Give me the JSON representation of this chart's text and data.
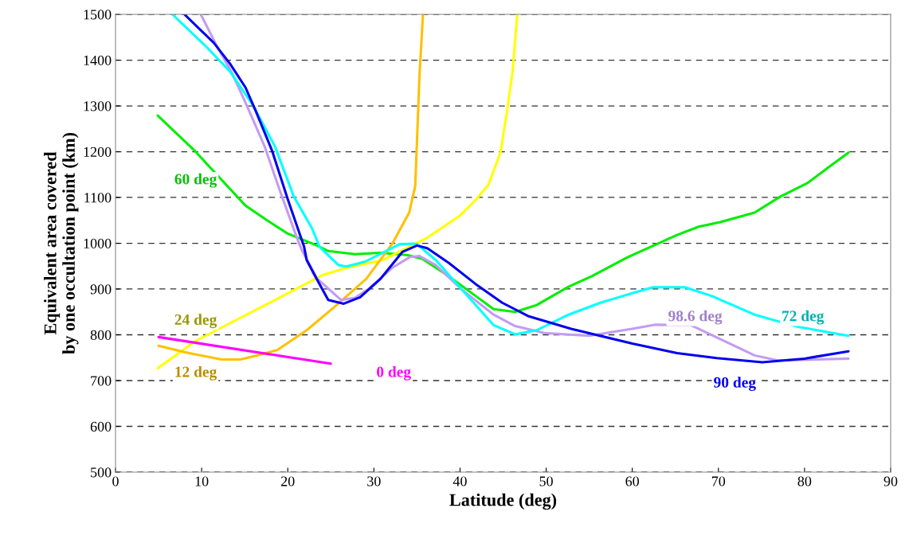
{
  "chart_data": {
    "type": "line",
    "xlabel": "Latitude (deg)",
    "ylabel": "Equivalent area covered\nby one occultation point (km)",
    "xlim": [
      0,
      90
    ],
    "xticks": [
      0,
      10,
      20,
      30,
      40,
      50,
      60,
      70,
      80,
      90
    ],
    "ylim": [
      500,
      1500
    ],
    "yticks": [
      500,
      600,
      700,
      800,
      900,
      1000,
      1100,
      1200,
      1300,
      1400,
      1500
    ],
    "grid": "y",
    "legend": false,
    "marker": "none",
    "line_style": "solid",
    "series": [
      {
        "name": "60 deg",
        "color": "#00ee00",
        "x": [
          4.9,
          9.25,
          15.1,
          17.6,
          20.0,
          23.4,
          24.7,
          27.8,
          30.8,
          33.9,
          35.6,
          38.7,
          41.8,
          43.9,
          46.4,
          48.9,
          52.6,
          55.3,
          59.4,
          65.2,
          67.7,
          70.2,
          74.2,
          77.2,
          80.3,
          82.8,
          85.1
        ],
        "values": [
          1279,
          1201,
          1082,
          1050,
          1021,
          995,
          983,
          976,
          979,
          974,
          966,
          928,
          885,
          856,
          850,
          865,
          905,
          928,
          969,
          1018,
          1036,
          1046,
          1067,
          1102,
          1131,
          1166,
          1198
        ]
      },
      {
        "name": "24 deg",
        "color": "#ffff00",
        "x": [
          4.9,
          9.25,
          18.5,
          24.1,
          26.8,
          31.0,
          36.2,
          39.9,
          41.8,
          43.3,
          44.7,
          45.5,
          46.1,
          46.65
        ],
        "values": [
          727,
          786,
          876,
          931,
          946,
          963,
          1012,
          1059,
          1094,
          1128,
          1198,
          1294,
          1375,
          1500
        ]
      },
      {
        "name": "12 deg",
        "color": "#ffc000",
        "x": [
          5.0,
          8.0,
          12.3,
          14.5,
          16.7,
          18.8,
          22.2,
          25.3,
          29.1,
          32.1,
          34.1,
          34.8,
          35.3,
          35.7
        ],
        "values": [
          776,
          762,
          746,
          746,
          756,
          767,
          810,
          859,
          922,
          998,
          1067,
          1125,
          1369,
          1500
        ]
      },
      {
        "name": "0 deg",
        "color": "#ff00ff",
        "x": [
          5,
          25
        ],
        "values": [
          795,
          737
        ]
      },
      {
        "name": "98.6 deg",
        "color": "#c39bf3",
        "x": [
          9.9,
          11.7,
          13.6,
          15.4,
          17.3,
          19.1,
          21.0,
          21.6,
          23.4,
          26.2,
          27.8,
          29.3,
          32.1,
          34.2,
          35.3,
          37.2,
          40.2,
          43.9,
          46.4,
          49.8,
          55.0,
          60.0,
          62.7,
          66.8,
          74.2,
          76.9,
          85.1
        ],
        "values": [
          1500,
          1433,
          1369,
          1294,
          1212,
          1114,
          1015,
          986,
          923,
          876,
          881,
          899,
          946,
          970,
          972,
          952,
          899,
          844,
          819,
          804,
          798,
          813,
          822,
          821,
          755,
          744,
          748
        ]
      },
      {
        "name": "72 deg",
        "color": "#00ffff",
        "x": [
          6.6,
          10.5,
          13.3,
          16.0,
          18.5,
          20.7,
          22.8,
          23.7,
          25.9,
          26.8,
          29.0,
          33.0,
          34.5,
          35.0,
          37.2,
          40.2,
          42.1,
          43.9,
          46.4,
          48.9,
          52.6,
          56.3,
          60.0,
          62.4,
          66.1,
          69.2,
          74.2,
          79.1,
          85.1
        ],
        "values": [
          1500,
          1430,
          1375,
          1300,
          1212,
          1102,
          1033,
          992,
          952,
          949,
          960,
          998,
          999,
          998,
          963,
          899,
          859,
          821,
          801,
          810,
          844,
          870,
          891,
          904,
          904,
          885,
          844,
          818,
          798
        ]
      },
      {
        "name": "90 deg",
        "color": "#0000ee",
        "x": [
          8.0,
          11.4,
          13.3,
          15.1,
          16.3,
          18.2,
          20.0,
          21.9,
          22.2,
          23.1,
          24.7,
          26.5,
          28.4,
          30.8,
          33.3,
          35.0,
          36.2,
          38.7,
          41.8,
          44.9,
          47.9,
          52.9,
          60.0,
          65.2,
          69.8,
          75.1,
          80.0,
          85.1
        ],
        "values": [
          1500,
          1438,
          1392,
          1340,
          1288,
          1201,
          1096,
          992,
          963,
          931,
          876,
          868,
          882,
          923,
          981,
          995,
          989,
          957,
          911,
          870,
          841,
          813,
          781,
          760,
          749,
          740,
          748,
          764
        ]
      }
    ]
  }
}
